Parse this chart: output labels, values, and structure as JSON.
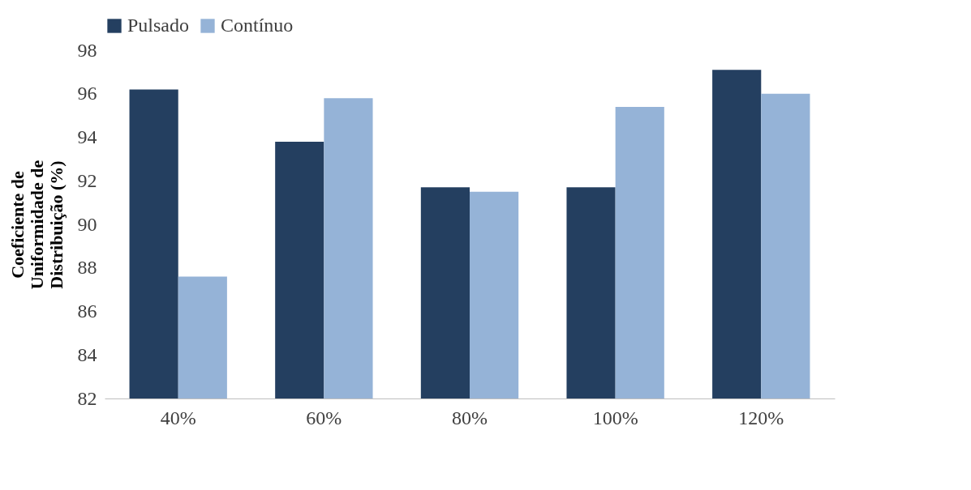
{
  "chart_data": {
    "type": "bar",
    "categories": [
      "40%",
      "60%",
      "80%",
      "100%",
      "120%"
    ],
    "ylabel": "Coeficiente de Uniformidade de Distribuição (%)",
    "series": [
      {
        "name": "Pulsado",
        "color": "#243f60",
        "values": [
          96.2,
          93.8,
          91.7,
          91.7,
          97.1
        ]
      },
      {
        "name": "Contínuo",
        "color": "#95b3d7",
        "values": [
          87.6,
          95.8,
          91.5,
          95.4,
          96.0
        ]
      }
    ],
    "ylim": [
      82,
      98
    ],
    "yticks": [
      82,
      84,
      86,
      88,
      90,
      92,
      94,
      96,
      98
    ],
    "grid": false,
    "legend": "top"
  }
}
